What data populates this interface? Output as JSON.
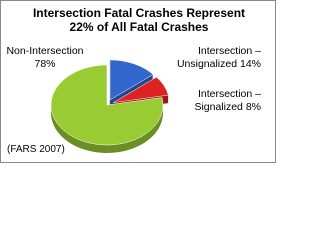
{
  "chart_data": {
    "type": "pie",
    "title": "Intersection Fatal Crashes Represent 22% of All Fatal Crashes",
    "categories": [
      "Non-Intersection",
      "Intersection – Unsignalized",
      "Intersection – Signalized"
    ],
    "values": [
      78,
      14,
      8
    ],
    "value_labels": [
      "78%",
      "14%",
      "8%"
    ],
    "colors": [
      "#99cc33",
      "#3366cc",
      "#dd2222"
    ],
    "annotation": "(FARS 2007)"
  }
}
